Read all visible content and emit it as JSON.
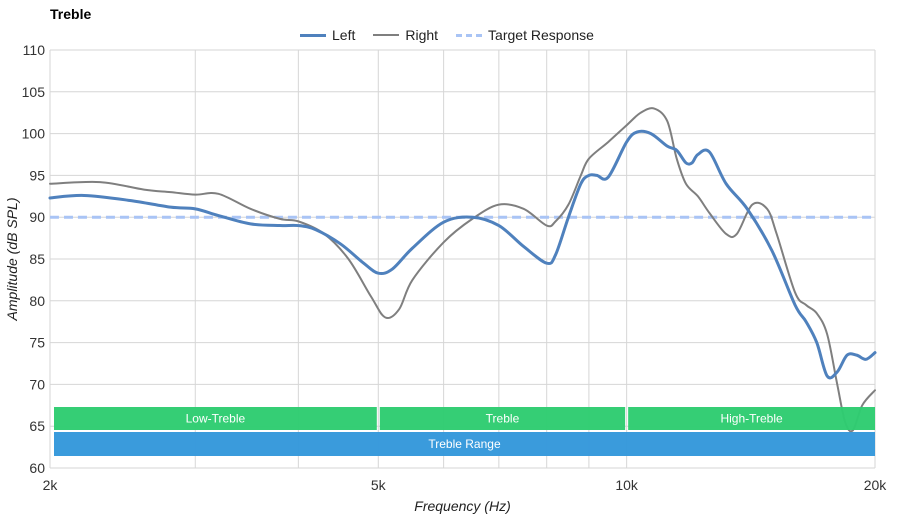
{
  "chart_data": {
    "type": "line",
    "title": "Treble",
    "xlabel": "Frequency (Hz)",
    "ylabel": "Amplitude (dB SPL)",
    "x_scale": "log",
    "xlim": [
      2000,
      20000
    ],
    "ylim": [
      60,
      110
    ],
    "y_ticks": [
      60,
      65,
      70,
      75,
      80,
      85,
      90,
      95,
      100,
      105,
      110
    ],
    "x_ticks": [
      {
        "value": 2000,
        "label": "2k"
      },
      {
        "value": 5000,
        "label": "5k"
      },
      {
        "value": 10000,
        "label": "10k"
      },
      {
        "value": 20000,
        "label": "20k"
      }
    ],
    "x_gridlines": [
      2000,
      3000,
      4000,
      5000,
      6000,
      7000,
      8000,
      9000,
      10000,
      20000
    ],
    "grid": true,
    "legend_position": "top-center",
    "series": [
      {
        "name": "Left",
        "color": "#4f81bd",
        "style": "solid-thick",
        "x": [
          2000,
          2200,
          2500,
          2800,
          3000,
          3200,
          3500,
          3800,
          4000,
          4200,
          4500,
          4800,
          5000,
          5200,
          5500,
          6000,
          6500,
          7000,
          7500,
          8000,
          8200,
          8500,
          8800,
          9000,
          9200,
          9500,
          10000,
          10300,
          10700,
          11200,
          11500,
          11800,
          12000,
          12200,
          12600,
          13200,
          14000,
          15000,
          16000,
          16500,
          17000,
          17500,
          18000,
          18500,
          19000,
          19500,
          20000
        ],
        "y": [
          92.3,
          92.6,
          92.0,
          91.2,
          91.0,
          90.2,
          89.2,
          89.0,
          89.0,
          88.5,
          86.8,
          84.5,
          83.3,
          83.8,
          86.3,
          89.4,
          90.0,
          89.0,
          86.5,
          84.5,
          85.5,
          90.0,
          94.0,
          95.0,
          95.0,
          94.8,
          99.0,
          100.2,
          100.0,
          98.5,
          98.0,
          96.5,
          96.5,
          97.5,
          97.8,
          94.0,
          91.0,
          86.0,
          79.5,
          77.5,
          75.0,
          71.0,
          71.5,
          73.5,
          73.5,
          73.0,
          73.8
        ]
      },
      {
        "name": "Right",
        "color": "#7f7f7f",
        "style": "solid-thin",
        "x": [
          2000,
          2300,
          2600,
          2800,
          3000,
          3200,
          3500,
          3800,
          4000,
          4300,
          4600,
          4900,
          5100,
          5300,
          5500,
          6000,
          6500,
          7000,
          7500,
          8000,
          8200,
          8500,
          8800,
          9000,
          9500,
          10000,
          10400,
          10800,
          11200,
          11500,
          11800,
          12200,
          12600,
          13200,
          13600,
          14200,
          14800,
          15200,
          16000,
          16500,
          17000,
          17500,
          18000,
          18400,
          18800,
          19300,
          20000
        ],
        "y": [
          94.0,
          94.2,
          93.3,
          93.0,
          92.7,
          92.8,
          91.0,
          89.8,
          89.5,
          88.0,
          85.0,
          80.5,
          78.0,
          79.0,
          82.5,
          87.0,
          89.8,
          91.5,
          91.0,
          89.0,
          89.5,
          91.5,
          95.0,
          97.0,
          99.0,
          101.0,
          102.5,
          103.0,
          101.5,
          97.0,
          94.0,
          92.5,
          90.5,
          88.0,
          88.0,
          91.5,
          91.0,
          88.0,
          81.0,
          79.5,
          78.5,
          76.0,
          70.0,
          65.5,
          64.5,
          67.5,
          69.3
        ]
      },
      {
        "name": "Target Response",
        "color": "#a9c4f5",
        "style": "dashed",
        "x": [
          2000,
          20000
        ],
        "y": [
          90,
          90
        ]
      }
    ],
    "bands": [
      {
        "label": "Low-Treble",
        "from": 2000,
        "to": 5000,
        "row": 1,
        "color": "#2ecc71"
      },
      {
        "label": "Treble",
        "from": 5000,
        "to": 10000,
        "row": 1,
        "color": "#2ecc71"
      },
      {
        "label": "High-Treble",
        "from": 10000,
        "to": 20000,
        "row": 1,
        "color": "#2ecc71"
      },
      {
        "label": "Treble Range",
        "from": 2000,
        "to": 20000,
        "row": 2,
        "color": "#3498db"
      }
    ]
  }
}
